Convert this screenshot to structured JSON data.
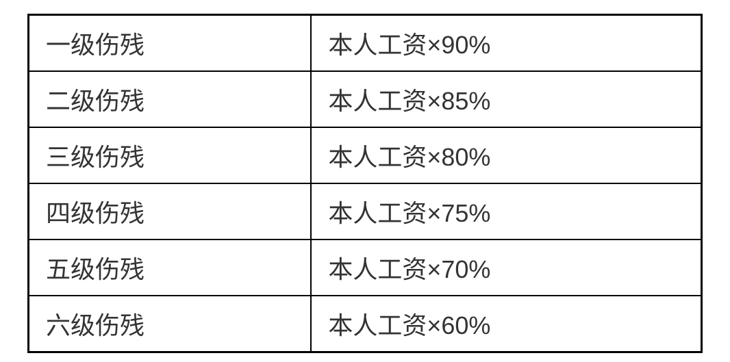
{
  "table": {
    "type": "table",
    "columns": [
      "disability_level",
      "compensation"
    ],
    "column_widths": [
      "42%",
      "58%"
    ],
    "rows": [
      {
        "level": "一级伤残",
        "value": "本人工资×90%"
      },
      {
        "level": "二级伤残",
        "value": "本人工资×85%"
      },
      {
        "level": "三级伤残",
        "value": "本人工资×80%"
      },
      {
        "level": "四级伤残",
        "value": "本人工资×75%"
      },
      {
        "level": "五级伤残",
        "value": "本人工资×70%"
      },
      {
        "level": "六级伤残",
        "value": "本人工资×60%"
      }
    ],
    "style": {
      "border_color": "#000000",
      "outer_border_width": 3,
      "inner_border_width": 2,
      "background_color": "#ffffff",
      "text_color": "#333333",
      "font_size": 36,
      "cell_padding_vertical": 14,
      "cell_padding_horizontal": 24,
      "text_align": "left"
    }
  }
}
